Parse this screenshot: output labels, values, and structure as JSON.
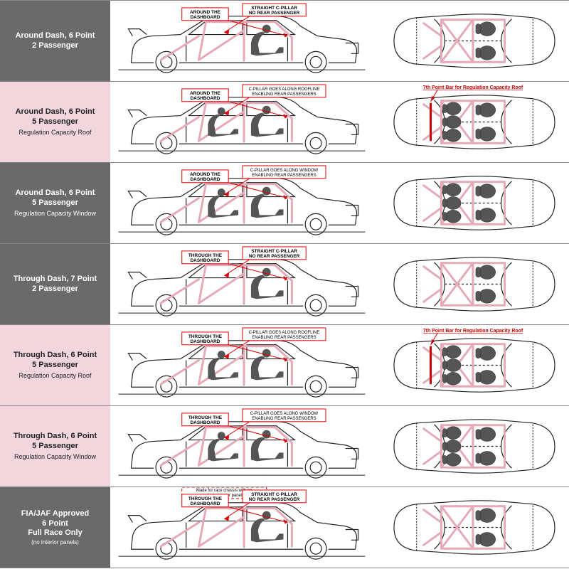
{
  "colors": {
    "dark_bg": "#6a6a6a",
    "pink_bg": "#f1d7dd",
    "cage_pink": "#e6a9b8",
    "callout_red": "#d00000",
    "text_white": "#ffffff",
    "text_dark": "#222222",
    "accent_red": "#cc0000"
  },
  "rows": [
    {
      "bg": "dark",
      "title": "Around Dash, 6 Point\n2 Passenger",
      "subtitle": "",
      "callout1": "AROUND THE\nDASHBOARD",
      "callout2": "STRAIGHT C-PILLAR\nNO REAR PASSENGER",
      "callout2_small": false,
      "made_for": "",
      "rear_pass": false,
      "top_annot": "",
      "seventh_bar": false,
      "top_seats": 2
    },
    {
      "bg": "pink",
      "title": "Around Dash, 6 Point\n5 Passenger",
      "subtitle": "Regulation Capacity Roof",
      "callout1": "AROUND THE\nDASHBOARD",
      "callout2": "C-PILLAR GOES ALONG ROOFLINE\nENABLING REAR PASSENGERS",
      "callout2_small": true,
      "made_for": "",
      "rear_pass": true,
      "top_annot": "7th Point Bar for Regulation Capacity Roof",
      "seventh_bar": true,
      "top_seats": 5
    },
    {
      "bg": "dark",
      "title": "Around Dash, 6 Point\n5 Passenger",
      "subtitle": "Regulation Capacity Window",
      "callout1": "AROUND THE\nDASHBOARD",
      "callout2": "C-PILLAR GOES ALONG WINDOW\nENABLING REAR PASSENGERS",
      "callout2_small": true,
      "made_for": "",
      "rear_pass": true,
      "top_annot": "",
      "seventh_bar": false,
      "top_seats": 5
    },
    {
      "bg": "dark",
      "title": "Through Dash, 7 Point\n2 Passenger",
      "subtitle": "",
      "callout1": "THROUGH THE\nDASHBOARD",
      "callout2": "STRAIGHT C-PILLAR\nNO REAR PASSENGER",
      "callout2_small": false,
      "made_for": "",
      "rear_pass": false,
      "top_annot": "",
      "seventh_bar": false,
      "top_seats": 2
    },
    {
      "bg": "pink",
      "title": "Through Dash, 6 Point\n5 Passenger",
      "subtitle": "Regulation Capacity Roof",
      "callout1": "THROUGH THE\nDASHBOARD",
      "callout2": "C-PILLAR GOES ALONG ROOFLINE\nENABLING REAR PASSENGERS",
      "callout2_small": true,
      "made_for": "",
      "rear_pass": true,
      "top_annot": "7th Point Bar for Regulation Capacity Roof",
      "seventh_bar": true,
      "top_seats": 5
    },
    {
      "bg": "pink",
      "title": "Through Dash, 6 Point\n5 Passenger",
      "subtitle": "Regulation Capacity Window",
      "callout1": "THROUGH THE\nDASHBOARD",
      "callout2": "C-PILLAR GOES ALONG WINDOW\nENABLING REAR PASSENGERS",
      "callout2_small": true,
      "made_for": "",
      "rear_pass": true,
      "top_annot": "",
      "seventh_bar": false,
      "top_seats": 5
    },
    {
      "bg": "dark",
      "title": "FIA/JAF Approved\n6 Point\nFull Race Only",
      "subtitle": "",
      "subtitle_paren": "(no interior panels)",
      "callout1": "THROUGH THE\nDASHBOARD",
      "callout2": "STRAIGHT C-PILLAR\nNO REAR PASSENGER",
      "callout2_small": false,
      "made_for": "Made for race chassis with no\nvehicle interior panels.",
      "rear_pass": false,
      "top_annot": "",
      "seventh_bar": false,
      "top_seats": 2
    }
  ]
}
